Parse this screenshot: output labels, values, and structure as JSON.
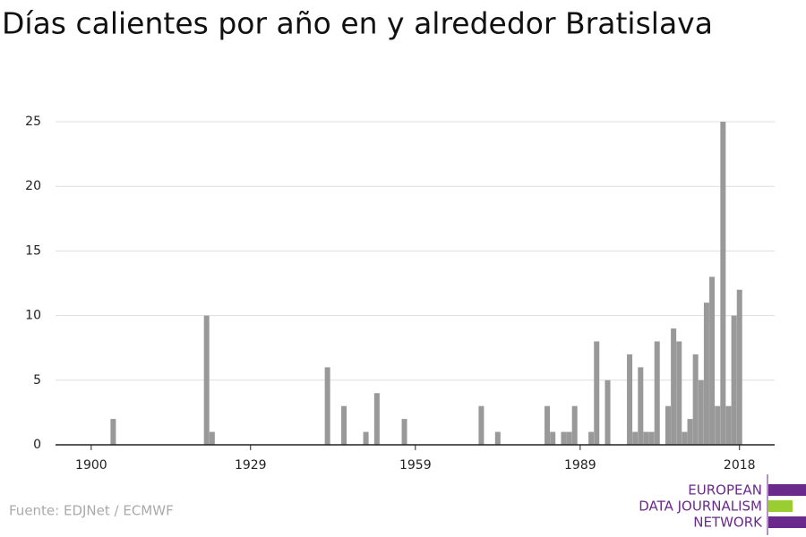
{
  "chart_data": {
    "type": "bar",
    "title": "Días calientes por año en y alrededor Bratislava",
    "source": "Fuente: EDJNet / ECMWF",
    "logo": [
      "EUROPEAN",
      "DATA JOURNALISM",
      "NETWORK"
    ],
    "color": "#999999",
    "x": [
      1900,
      1901,
      1902,
      1903,
      1904,
      1905,
      1906,
      1907,
      1908,
      1909,
      1910,
      1911,
      1912,
      1913,
      1914,
      1915,
      1916,
      1917,
      1918,
      1919,
      1920,
      1921,
      1922,
      1923,
      1924,
      1925,
      1926,
      1927,
      1928,
      1929,
      1930,
      1931,
      1932,
      1933,
      1934,
      1935,
      1936,
      1937,
      1938,
      1939,
      1940,
      1941,
      1942,
      1943,
      1944,
      1945,
      1946,
      1947,
      1948,
      1949,
      1950,
      1951,
      1952,
      1953,
      1954,
      1955,
      1956,
      1957,
      1958,
      1959,
      1960,
      1961,
      1962,
      1963,
      1964,
      1965,
      1966,
      1967,
      1968,
      1969,
      1970,
      1971,
      1972,
      1973,
      1974,
      1975,
      1976,
      1977,
      1978,
      1979,
      1980,
      1981,
      1982,
      1983,
      1984,
      1985,
      1986,
      1987,
      1988,
      1989,
      1990,
      1991,
      1992,
      1993,
      1994,
      1995,
      1996,
      1997,
      1998,
      1999,
      2000,
      2001,
      2002,
      2003,
      2004,
      2005,
      2006,
      2007,
      2008,
      2009,
      2010,
      2011,
      2012,
      2013,
      2014,
      2015,
      2016,
      2017,
      2018
    ],
    "values": [
      0,
      0,
      0,
      0,
      2,
      0,
      0,
      0,
      0,
      0,
      0,
      0,
      0,
      0,
      0,
      0,
      0,
      0,
      0,
      0,
      0,
      10,
      1,
      0,
      0,
      0,
      0,
      0,
      0,
      0,
      0,
      0,
      0,
      0,
      0,
      0,
      0,
      0,
      0,
      0,
      0,
      0,
      0,
      6,
      0,
      0,
      3,
      0,
      0,
      0,
      1,
      0,
      4,
      0,
      0,
      0,
      0,
      2,
      0,
      0,
      0,
      0,
      0,
      0,
      0,
      0,
      0,
      0,
      0,
      0,
      0,
      3,
      0,
      0,
      1,
      0,
      0,
      0,
      0,
      0,
      0,
      0,
      0,
      3,
      1,
      0,
      1,
      1,
      3,
      0,
      0,
      1,
      8,
      0,
      5,
      0,
      0,
      0,
      7,
      1,
      6,
      1,
      1,
      8,
      0,
      3,
      9,
      8,
      1,
      2,
      7,
      5,
      11,
      13,
      3,
      25,
      3,
      10,
      12
    ],
    "xlim": [
      1893.5,
      2024.4
    ],
    "xticks": [
      1900,
      1929,
      1959,
      1989,
      2018
    ],
    "ylim": [
      0,
      25
    ],
    "yticks": [
      0,
      5,
      10,
      15,
      20,
      25
    ],
    "grid": true
  }
}
